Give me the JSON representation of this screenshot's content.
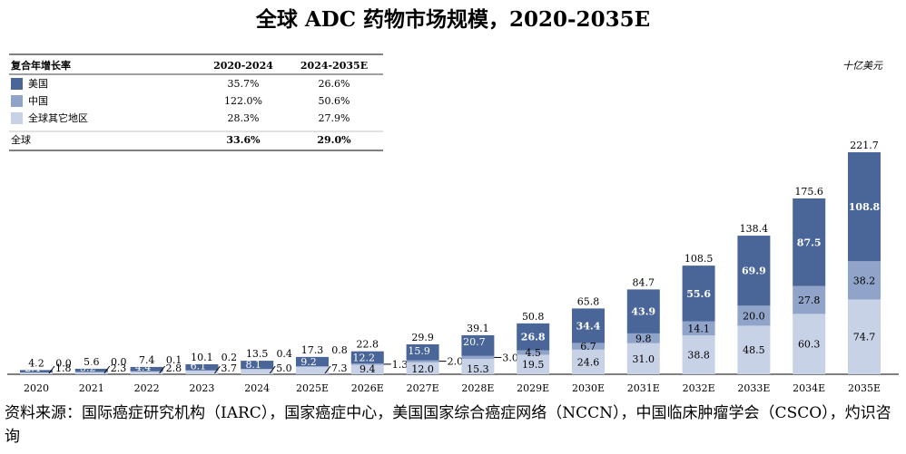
{
  "title": "全球 ADC 药物市场规模，2020-2035E",
  "unit": "十亿美元",
  "source": "资料来源：国际癌症研究机构（IARC），国家癌症中心，美国国家综合癌症网络（NCCN），中国临床肿瘤学会（CSCO），灼识咨询",
  "cagr_table": {
    "headers": [
      "复合年增长率",
      "2020-2024",
      "2024-2035E"
    ],
    "rows": [
      {
        "label": "美国",
        "c1": "35.7%",
        "c2": "26.6%"
      },
      {
        "label": "中国",
        "c1": "122.0%",
        "c2": "50.6%"
      },
      {
        "label": "全球其它地区",
        "c1": "28.3%",
        "c2": "27.9%"
      },
      {
        "label": "全球",
        "c1": "33.6%",
        "c2": "29.0%"
      }
    ]
  },
  "colors": {
    "us": "#4a6699",
    "china": "#90a3c9",
    "row": "#c8d2e6"
  },
  "chart_data": {
    "type": "bar",
    "stacked": true,
    "categories": [
      "2020",
      "2021",
      "2022",
      "2023",
      "2024",
      "2025E",
      "2026E",
      "2027E",
      "2028E",
      "2029E",
      "2030E",
      "2031E",
      "2032E",
      "2033E",
      "2034E",
      "2035E"
    ],
    "series": [
      {
        "name": "全球其它地区",
        "values": [
          1.8,
          2.3,
          2.8,
          3.7,
          5.0,
          7.3,
          9.4,
          12.0,
          15.3,
          19.5,
          24.6,
          31.0,
          38.8,
          48.5,
          60.3,
          74.7
        ]
      },
      {
        "name": "中国",
        "values": [
          0.0,
          0.0,
          0.1,
          0.2,
          0.4,
          0.8,
          1.3,
          2.0,
          3.0,
          4.5,
          6.7,
          9.8,
          14.1,
          20.0,
          27.8,
          38.2
        ]
      },
      {
        "name": "美国",
        "values": [
          2.4,
          3.2,
          4.4,
          6.1,
          8.1,
          9.2,
          12.2,
          15.9,
          20.7,
          26.8,
          34.4,
          43.9,
          55.6,
          69.9,
          87.5,
          108.8
        ]
      }
    ],
    "totals": [
      4.2,
      5.6,
      7.4,
      10.1,
      13.5,
      17.3,
      22.8,
      29.9,
      39.1,
      50.8,
      65.8,
      84.7,
      108.5,
      138.4,
      175.6,
      221.7
    ]
  }
}
